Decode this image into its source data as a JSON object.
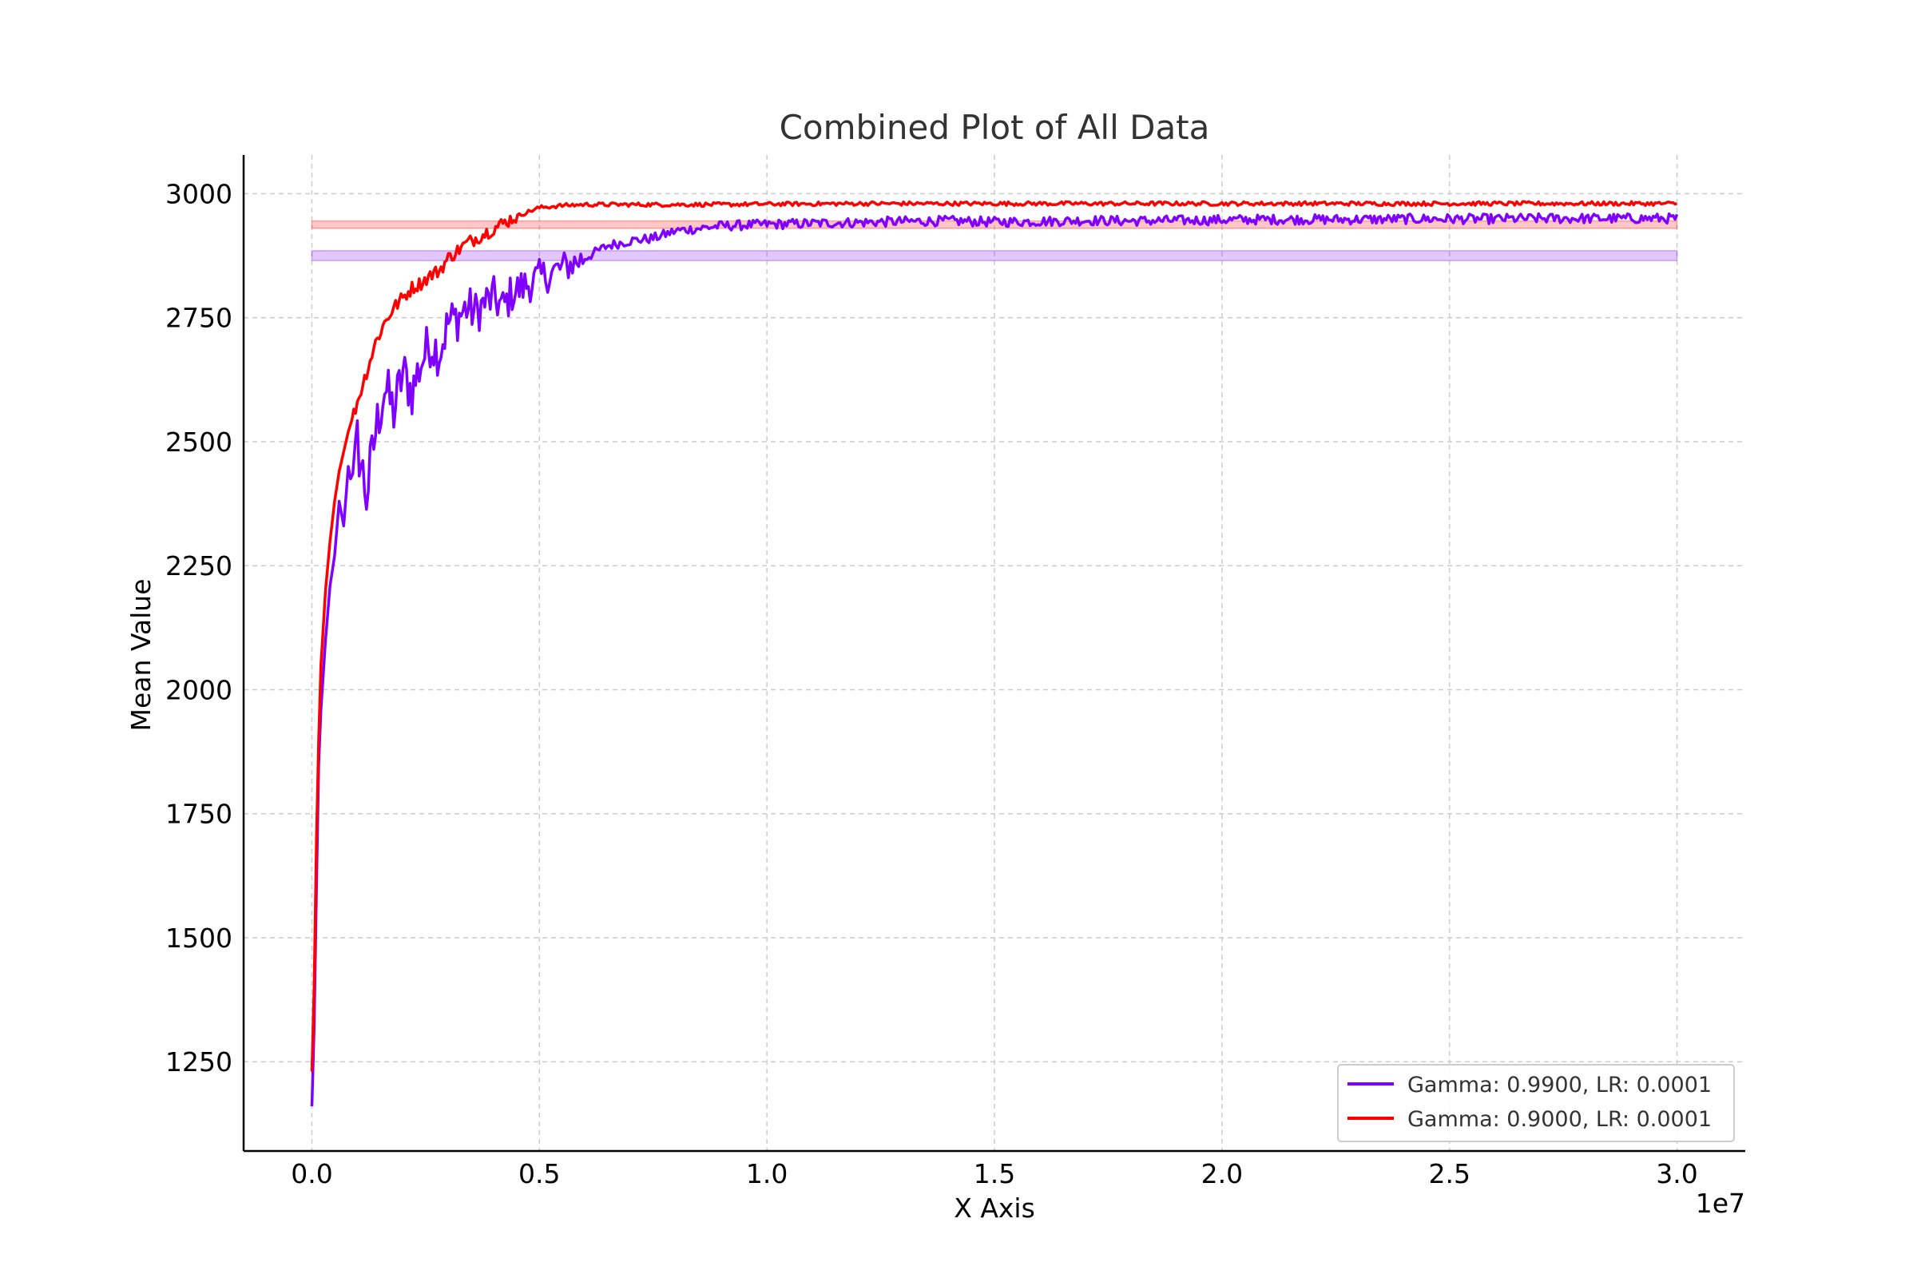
{
  "chart_data": {
    "type": "line",
    "title": "Combined Plot of All Data",
    "xlabel": "X Axis",
    "ylabel": "Mean Value",
    "x_offset_label": "1e7",
    "xlim": [
      -1500000,
      31500000
    ],
    "ylim": [
      1070,
      3078
    ],
    "x_ticks": [
      0,
      5000000,
      10000000,
      15000000,
      20000000,
      25000000,
      30000000
    ],
    "x_tick_labels": [
      "0.0",
      "0.5",
      "1.0",
      "1.5",
      "2.0",
      "2.5",
      "3.0"
    ],
    "y_ticks": [
      1250,
      1500,
      1750,
      2000,
      2250,
      2500,
      2750,
      3000
    ],
    "y_tick_labels": [
      "1250",
      "1500",
      "1750",
      "2000",
      "2250",
      "2500",
      "2750",
      "3000"
    ],
    "grid": true,
    "legend_position": "lower-right",
    "series": [
      {
        "name": "Gamma: 0.9900, LR: 0.0001",
        "color": "#7f00ff",
        "band": [
          2865,
          2885
        ],
        "points": [
          [
            0,
            1160
          ],
          [
            50000,
            1320
          ],
          [
            100000,
            1600
          ],
          [
            150000,
            1850
          ],
          [
            200000,
            1960
          ],
          [
            300000,
            2100
          ],
          [
            400000,
            2210
          ],
          [
            500000,
            2270
          ],
          [
            600000,
            2380
          ],
          [
            700000,
            2330
          ],
          [
            800000,
            2450
          ],
          [
            900000,
            2400
          ],
          [
            1000000,
            2500
          ],
          [
            1200000,
            2390
          ],
          [
            1400000,
            2520
          ],
          [
            1600000,
            2610
          ],
          [
            1800000,
            2560
          ],
          [
            2000000,
            2640
          ],
          [
            2200000,
            2600
          ],
          [
            2400000,
            2660
          ],
          [
            2600000,
            2700
          ],
          [
            2800000,
            2680
          ],
          [
            3000000,
            2740
          ],
          [
            3200000,
            2750
          ],
          [
            3400000,
            2770
          ],
          [
            3600000,
            2760
          ],
          [
            3800000,
            2780
          ],
          [
            4000000,
            2790
          ],
          [
            4200000,
            2770
          ],
          [
            4400000,
            2800
          ],
          [
            4600000,
            2810
          ],
          [
            4800000,
            2820
          ],
          [
            5000000,
            2830
          ],
          [
            5500000,
            2850
          ],
          [
            6000000,
            2870
          ],
          [
            6500000,
            2895
          ],
          [
            7000000,
            2905
          ],
          [
            7500000,
            2910
          ],
          [
            8000000,
            2925
          ],
          [
            8500000,
            2930
          ],
          [
            9000000,
            2935
          ],
          [
            10000000,
            2938
          ],
          [
            11000000,
            2940
          ],
          [
            12000000,
            2942
          ],
          [
            13000000,
            2944
          ],
          [
            14000000,
            2945
          ],
          [
            15000000,
            2943
          ],
          [
            16000000,
            2944
          ],
          [
            17000000,
            2946
          ],
          [
            18000000,
            2945
          ],
          [
            19000000,
            2946
          ],
          [
            20000000,
            2947
          ],
          [
            21000000,
            2948
          ],
          [
            22000000,
            2948
          ],
          [
            23000000,
            2948
          ],
          [
            24000000,
            2949
          ],
          [
            25000000,
            2949
          ],
          [
            26000000,
            2949
          ],
          [
            27000000,
            2950
          ],
          [
            28000000,
            2950
          ],
          [
            29000000,
            2950
          ],
          [
            30000000,
            2950
          ]
        ]
      },
      {
        "name": "Gamma: 0.9000, LR: 0.0001",
        "color": "#ff0000",
        "band": [
          2930,
          2945
        ],
        "points": [
          [
            0,
            1230
          ],
          [
            50000,
            1400
          ],
          [
            100000,
            1700
          ],
          [
            150000,
            1900
          ],
          [
            200000,
            2050
          ],
          [
            300000,
            2200
          ],
          [
            400000,
            2300
          ],
          [
            500000,
            2380
          ],
          [
            600000,
            2440
          ],
          [
            700000,
            2480
          ],
          [
            800000,
            2520
          ],
          [
            1000000,
            2580
          ],
          [
            1200000,
            2640
          ],
          [
            1400000,
            2700
          ],
          [
            1600000,
            2740
          ],
          [
            1800000,
            2770
          ],
          [
            2000000,
            2790
          ],
          [
            2200000,
            2810
          ],
          [
            2400000,
            2820
          ],
          [
            2600000,
            2835
          ],
          [
            2800000,
            2845
          ],
          [
            3000000,
            2870
          ],
          [
            3200000,
            2885
          ],
          [
            3400000,
            2900
          ],
          [
            3600000,
            2910
          ],
          [
            3800000,
            2920
          ],
          [
            4000000,
            2930
          ],
          [
            4200000,
            2940
          ],
          [
            4400000,
            2950
          ],
          [
            4600000,
            2958
          ],
          [
            4800000,
            2965
          ],
          [
            5000000,
            2972
          ],
          [
            5500000,
            2976
          ],
          [
            6000000,
            2978
          ],
          [
            7000000,
            2978
          ],
          [
            8000000,
            2978
          ],
          [
            9000000,
            2978
          ],
          [
            10000000,
            2979
          ],
          [
            12000000,
            2980
          ],
          [
            14000000,
            2980
          ],
          [
            16000000,
            2980
          ],
          [
            18000000,
            2980
          ],
          [
            20000000,
            2980
          ],
          [
            22000000,
            2980
          ],
          [
            24000000,
            2980
          ],
          [
            26000000,
            2980
          ],
          [
            28000000,
            2980
          ],
          [
            30000000,
            2980
          ]
        ]
      }
    ]
  }
}
